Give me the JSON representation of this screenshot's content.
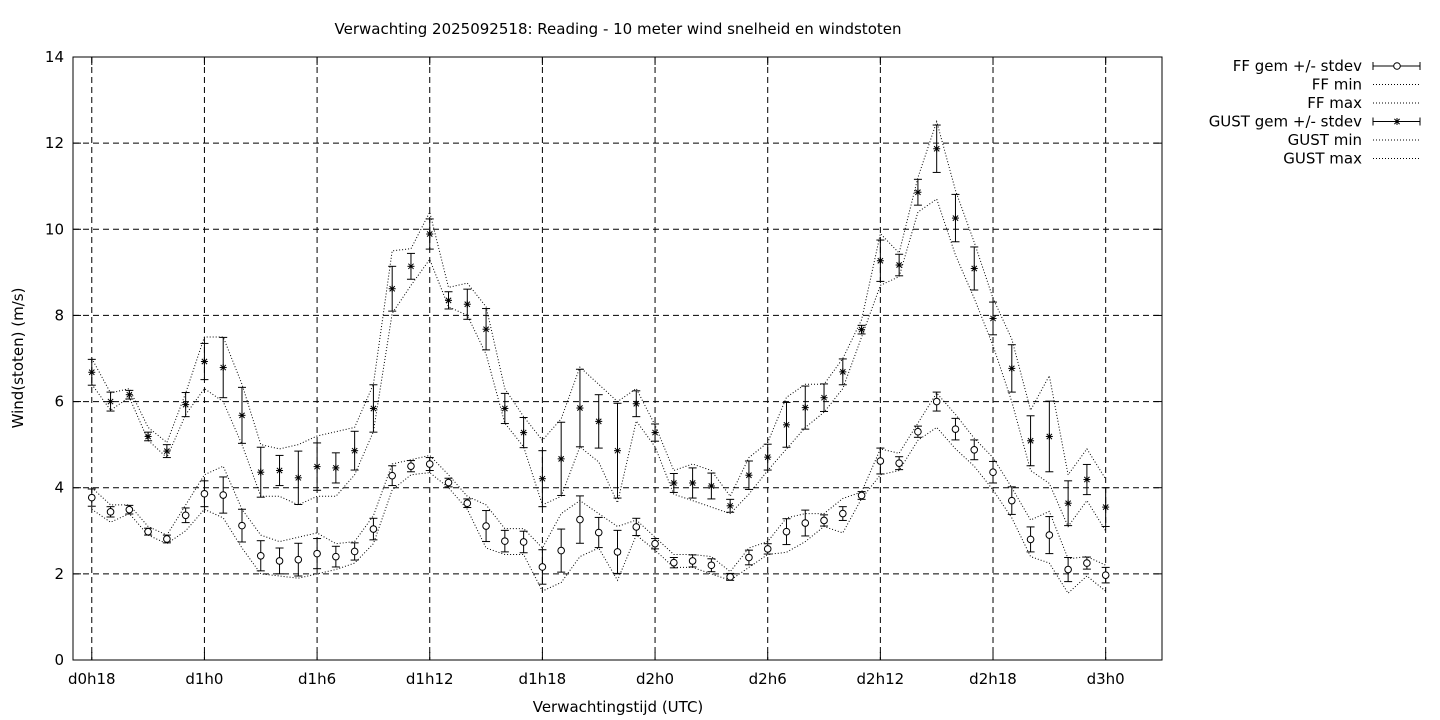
{
  "chart_data": {
    "type": "line",
    "title": "Verwachting 2025092518: Reading - 10 meter wind snelheid en windstoten",
    "xlabel": "Verwachtingstijd (UTC)",
    "ylabel": "Wind(stoten) (m/s)",
    "x_unit": "hours since d0h0",
    "xlim": [
      17,
      75
    ],
    "ylim": [
      0,
      14
    ],
    "yticks": [
      0,
      2,
      4,
      6,
      8,
      10,
      12,
      14
    ],
    "xticks": [
      {
        "x": 18,
        "label": "d0h18"
      },
      {
        "x": 24,
        "label": "d1h0"
      },
      {
        "x": 30,
        "label": "d1h6"
      },
      {
        "x": 36,
        "label": "d1h12"
      },
      {
        "x": 42,
        "label": "d1h18"
      },
      {
        "x": 48,
        "label": "d2h0"
      },
      {
        "x": 54,
        "label": "d2h6"
      },
      {
        "x": 60,
        "label": "d2h12"
      },
      {
        "x": 66,
        "label": "d2h18"
      },
      {
        "x": 72,
        "label": "d3h0"
      }
    ],
    "grid": true,
    "legend_position": "outside-top-right",
    "x": [
      18,
      19,
      20,
      21,
      22,
      23,
      24,
      25,
      26,
      27,
      28,
      29,
      30,
      31,
      32,
      33,
      34,
      35,
      36,
      37,
      38,
      39,
      40,
      41,
      42,
      43,
      44,
      45,
      46,
      47,
      48,
      49,
      50,
      51,
      52,
      53,
      54,
      55,
      56,
      57,
      58,
      59,
      60,
      61,
      62,
      63,
      64,
      65,
      66,
      67,
      68,
      69,
      70,
      71,
      72
    ],
    "series": [
      {
        "name": "FF gem +/- stdev",
        "marker": "circle",
        "values": [
          3.77,
          3.44,
          3.49,
          2.98,
          2.81,
          3.36,
          3.86,
          3.83,
          3.12,
          2.42,
          2.3,
          2.33,
          2.47,
          2.4,
          2.52,
          3.04,
          4.28,
          4.5,
          4.55,
          4.12,
          3.64,
          3.11,
          2.76,
          2.74,
          2.16,
          2.54,
          3.26,
          2.96,
          2.51,
          3.09,
          2.7,
          2.26,
          2.3,
          2.2,
          1.93,
          2.38,
          2.58,
          2.98,
          3.18,
          3.24,
          3.4,
          3.82,
          4.62,
          4.57,
          5.3,
          6.0,
          5.36,
          4.88,
          4.36,
          3.7,
          2.8,
          2.9,
          2.1,
          2.25,
          1.97
        ],
        "stdev": [
          0.2,
          0.12,
          0.1,
          0.08,
          0.09,
          0.17,
          0.3,
          0.42,
          0.38,
          0.35,
          0.3,
          0.38,
          0.35,
          0.24,
          0.2,
          0.25,
          0.23,
          0.13,
          0.15,
          0.1,
          0.1,
          0.36,
          0.25,
          0.25,
          0.4,
          0.5,
          0.55,
          0.35,
          0.5,
          0.2,
          0.12,
          0.12,
          0.14,
          0.15,
          0.08,
          0.17,
          0.12,
          0.3,
          0.3,
          0.13,
          0.16,
          0.09,
          0.3,
          0.15,
          0.13,
          0.22,
          0.25,
          0.23,
          0.25,
          0.32,
          0.29,
          0.43,
          0.28,
          0.14,
          0.18
        ]
      },
      {
        "name": "FF min",
        "values": [
          3.5,
          3.2,
          3.4,
          2.9,
          2.7,
          3.0,
          3.5,
          3.3,
          2.6,
          2.0,
          1.95,
          1.9,
          2.0,
          2.1,
          2.25,
          2.7,
          3.95,
          4.3,
          4.35,
          4.0,
          3.5,
          2.6,
          2.45,
          2.45,
          1.6,
          1.8,
          2.4,
          2.6,
          1.85,
          2.9,
          2.55,
          2.15,
          2.15,
          2.0,
          1.85,
          2.15,
          2.45,
          2.5,
          2.75,
          3.1,
          2.95,
          3.75,
          4.3,
          4.4,
          5.1,
          5.4,
          4.9,
          4.5,
          3.95,
          3.3,
          2.4,
          2.25,
          1.55,
          1.95,
          1.6
        ]
      },
      {
        "name": "FF max",
        "values": [
          4.0,
          3.6,
          3.6,
          3.1,
          2.9,
          3.6,
          4.3,
          4.5,
          3.5,
          2.9,
          2.75,
          2.85,
          2.95,
          2.7,
          2.75,
          3.35,
          4.55,
          4.65,
          4.75,
          4.3,
          3.8,
          3.6,
          3.05,
          3.05,
          2.6,
          3.4,
          3.7,
          3.4,
          3.1,
          3.25,
          2.85,
          2.45,
          2.45,
          2.4,
          2.05,
          2.6,
          2.75,
          3.3,
          3.4,
          3.4,
          3.75,
          3.9,
          4.9,
          4.8,
          5.5,
          6.2,
          5.7,
          5.15,
          4.7,
          4.0,
          3.25,
          3.45,
          2.35,
          2.4,
          2.2
        ]
      },
      {
        "name": "GUST gem +/- stdev",
        "marker": "star",
        "values": [
          6.68,
          6.0,
          6.16,
          5.19,
          4.85,
          5.93,
          6.93,
          6.79,
          5.68,
          4.36,
          4.4,
          4.23,
          4.49,
          4.46,
          4.86,
          5.84,
          8.62,
          9.14,
          9.89,
          8.35,
          8.26,
          7.68,
          5.84,
          5.28,
          4.21,
          4.67,
          5.85,
          5.54,
          4.86,
          5.95,
          5.28,
          4.11,
          4.11,
          4.04,
          3.58,
          4.29,
          4.71,
          5.46,
          5.86,
          6.09,
          6.69,
          7.67,
          9.27,
          9.17,
          10.86,
          11.87,
          10.26,
          9.09,
          7.93,
          6.77,
          5.09,
          5.19,
          3.64,
          4.19,
          3.55
        ]
      },
      {
        "name": "GUST min",
        "values": [
          6.4,
          5.8,
          6.1,
          5.1,
          4.7,
          5.7,
          6.3,
          6.0,
          5.0,
          3.8,
          3.8,
          3.6,
          3.8,
          3.8,
          4.3,
          5.3,
          8.05,
          8.7,
          9.3,
          8.2,
          8.0,
          7.1,
          5.5,
          4.95,
          3.6,
          3.8,
          4.95,
          4.6,
          3.65,
          5.55,
          4.95,
          3.85,
          3.7,
          3.55,
          3.4,
          3.85,
          4.4,
          4.9,
          5.4,
          5.75,
          6.3,
          7.5,
          8.7,
          8.9,
          10.4,
          10.7,
          9.4,
          8.4,
          7.3,
          6.0,
          4.4,
          4.1,
          3.1,
          3.7,
          3.0
        ]
      },
      {
        "name": "GUST max",
        "values": [
          7.0,
          6.2,
          6.3,
          5.4,
          5.05,
          6.2,
          7.5,
          7.5,
          6.4,
          5.0,
          4.9,
          5.0,
          5.2,
          5.3,
          5.4,
          6.4,
          9.5,
          9.55,
          10.4,
          8.65,
          8.75,
          8.2,
          6.3,
          5.65,
          5.1,
          5.6,
          6.8,
          6.4,
          6.0,
          6.3,
          5.45,
          4.4,
          4.55,
          4.4,
          3.8,
          4.7,
          5.05,
          6.1,
          6.4,
          6.4,
          7.0,
          7.9,
          9.9,
          9.45,
          11.2,
          12.5,
          10.9,
          9.7,
          8.4,
          7.45,
          5.8,
          6.6,
          4.3,
          4.9,
          4.2
        ]
      }
    ]
  }
}
